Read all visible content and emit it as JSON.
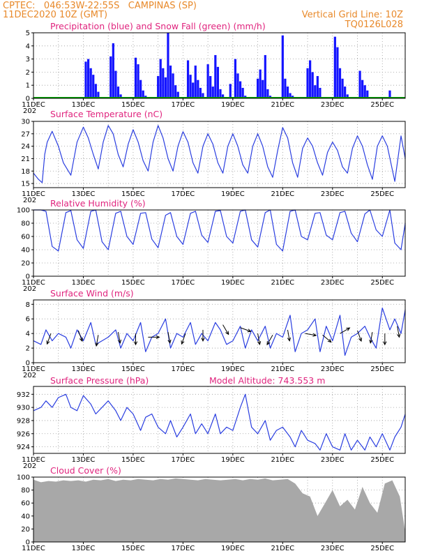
{
  "header": {
    "line1_left": "CPTEC:   046:53W-22:55S   CAMPINAS (SP)",
    "line2_left": "11DEC2020 10Z (GMT)",
    "line2_right": "Vertical Grid Line: 10Z",
    "line3_right": "TQ0126L028"
  },
  "x_axis": {
    "date_labels": [
      "11DEC",
      "13DEC",
      "15DEC",
      "17DEC",
      "19DEC",
      "21DEC",
      "23DEC",
      "25DEC"
    ],
    "year_fragment": "202"
  },
  "colors": {
    "header_text": "#e8892a",
    "title_text": "#e0247e",
    "precip": "#1414ff",
    "snow": "#00a000",
    "line": "#2a3ee0",
    "cloud": "#a8a8a8"
  },
  "chart_data": [
    {
      "id": "precipitation",
      "type": "bar",
      "title": "Precipitation (blue) and Snow Fall (green) (mm/h)",
      "ylim": [
        0,
        5
      ],
      "yticks": [
        "0",
        "1",
        "2",
        "3",
        "4",
        "5"
      ],
      "series": [
        {
          "name": "Precipitation",
          "color": "#1414ff"
        },
        {
          "name": "Snow Fall",
          "color": "#00a000"
        }
      ],
      "x_start": "2020-12-11T10:00",
      "x_end": "2020-12-26T08:00",
      "bar_days": [
        2.1,
        2.2,
        2.3,
        2.4,
        2.5,
        2.6,
        3.1,
        3.2,
        3.3,
        3.4,
        3.5,
        4.1,
        4.2,
        4.3,
        4.4,
        4.5,
        5.0,
        5.1,
        5.2,
        5.3,
        5.4,
        5.5,
        5.6,
        5.7,
        5.8,
        6.2,
        6.3,
        6.4,
        6.5,
        6.6,
        6.7,
        6.8,
        7.0,
        7.1,
        7.2,
        7.3,
        7.4,
        7.5,
        7.6,
        7.9,
        8.1,
        8.2,
        8.3,
        8.4,
        8.5,
        9.0,
        9.1,
        9.2,
        9.3,
        9.4,
        9.5,
        10.0,
        10.1,
        10.2,
        10.3,
        10.4,
        11.0,
        11.1,
        11.2,
        11.3,
        11.4,
        11.5,
        12.1,
        12.2,
        12.3,
        12.4,
        12.5,
        12.6,
        13.1,
        13.2,
        13.3,
        13.4,
        14.3
      ],
      "values": [
        2.8,
        3.0,
        2.3,
        1.8,
        1.1,
        0.5,
        3.2,
        4.2,
        2.1,
        0.9,
        0.3,
        3.1,
        2.6,
        1.4,
        0.6,
        0.2,
        1.7,
        3.0,
        2.3,
        1.6,
        5.0,
        2.5,
        1.9,
        1.0,
        0.5,
        2.9,
        1.8,
        1.2,
        2.5,
        1.4,
        0.8,
        0.4,
        2.6,
        1.7,
        0.9,
        3.3,
        2.4,
        0.7,
        0.3,
        1.1,
        3.0,
        1.9,
        1.3,
        0.8,
        0.2,
        1.5,
        2.2,
        1.4,
        3.3,
        0.7,
        0.2,
        4.8,
        1.5,
        0.9,
        0.4,
        0.2,
        2.3,
        2.9,
        2.0,
        1.0,
        1.7,
        0.8,
        4.7,
        3.9,
        2.3,
        1.5,
        0.9,
        0.3,
        2.1,
        1.4,
        1.0,
        0.6,
        0.6
      ]
    },
    {
      "id": "temperature",
      "type": "line",
      "title": "Surface Temperature (nC)",
      "ylim": [
        14,
        30
      ],
      "yticks": [
        "15",
        "18",
        "21",
        "24",
        "27",
        "30"
      ],
      "series": [
        {
          "name": "Surface Temperature",
          "color": "#2a3ee0"
        }
      ],
      "x_start": "2020-12-11T10:00",
      "x_end": "2020-12-26T08:00",
      "x_days": [
        0.0,
        0.2,
        0.35,
        0.45,
        0.55,
        0.75,
        1.0,
        1.2,
        1.5,
        1.75,
        2.0,
        2.2,
        2.4,
        2.6,
        2.8,
        3.0,
        3.2,
        3.4,
        3.6,
        3.8,
        4.0,
        4.2,
        4.4,
        4.6,
        4.8,
        5.0,
        5.2,
        5.4,
        5.6,
        5.8,
        6.0,
        6.2,
        6.4,
        6.6,
        6.8,
        7.0,
        7.2,
        7.4,
        7.6,
        7.8,
        8.0,
        8.2,
        8.4,
        8.6,
        8.8,
        9.0,
        9.2,
        9.4,
        9.6,
        9.8,
        10.0,
        10.2,
        10.4,
        10.6,
        10.8,
        11.0,
        11.2,
        11.4,
        11.6,
        11.8,
        12.0,
        12.2,
        12.4,
        12.6,
        12.8,
        13.0,
        13.2,
        13.4,
        13.6,
        13.8,
        14.0,
        14.2,
        14.5,
        14.75,
        14.92
      ],
      "values": [
        17.5,
        16.0,
        15.2,
        22.0,
        25.0,
        27.6,
        24.0,
        20.0,
        17.0,
        25.0,
        28.6,
        26.0,
        22.0,
        18.5,
        25.0,
        29.0,
        27.0,
        22.0,
        19.0,
        24.5,
        28.0,
        25.0,
        20.5,
        18.0,
        25.0,
        29.0,
        26.0,
        21.0,
        18.0,
        24.0,
        27.5,
        25.0,
        20.0,
        17.5,
        24.0,
        27.0,
        24.5,
        20.0,
        17.5,
        24.0,
        27.0,
        24.0,
        19.5,
        17.5,
        24.0,
        27.0,
        24.0,
        19.0,
        16.5,
        23.0,
        28.5,
        26.0,
        20.0,
        16.5,
        23.5,
        26.0,
        24.0,
        20.0,
        17.0,
        22.5,
        25.0,
        23.0,
        19.0,
        17.5,
        23.5,
        26.5,
        24.0,
        19.5,
        16.0,
        24.0,
        26.5,
        24.0,
        15.5,
        26.5,
        21.0
      ]
    },
    {
      "id": "humidity",
      "type": "line",
      "title": "Relative Humidity (%)",
      "ylim": [
        0,
        100
      ],
      "yticks": [
        "0",
        "20",
        "40",
        "60",
        "80",
        "100"
      ],
      "series": [
        {
          "name": "Relative Humidity",
          "color": "#2a3ee0"
        }
      ],
      "x_start": "2020-12-11T10:00",
      "x_end": "2020-12-26T08:00",
      "x_days": [
        0.0,
        0.3,
        0.5,
        0.75,
        1.0,
        1.3,
        1.5,
        1.75,
        2.0,
        2.3,
        2.5,
        2.75,
        3.0,
        3.3,
        3.5,
        3.75,
        4.0,
        4.3,
        4.5,
        4.75,
        5.0,
        5.3,
        5.5,
        5.75,
        6.0,
        6.3,
        6.5,
        6.75,
        7.0,
        7.3,
        7.5,
        7.75,
        8.0,
        8.3,
        8.5,
        8.75,
        9.0,
        9.3,
        9.5,
        9.75,
        10.0,
        10.3,
        10.5,
        10.75,
        11.0,
        11.3,
        11.5,
        11.75,
        12.0,
        12.3,
        12.5,
        12.75,
        13.0,
        13.3,
        13.5,
        13.75,
        14.0,
        14.3,
        14.5,
        14.75,
        14.92
      ],
      "values": [
        100,
        100,
        98,
        45,
        38,
        96,
        99,
        55,
        42,
        98,
        100,
        52,
        40,
        95,
        98,
        60,
        48,
        95,
        96,
        56,
        43,
        92,
        96,
        60,
        48,
        95,
        98,
        62,
        51,
        98,
        99,
        60,
        50,
        98,
        100,
        55,
        44,
        96,
        100,
        48,
        38,
        98,
        100,
        60,
        55,
        95,
        96,
        62,
        55,
        96,
        98,
        65,
        52,
        94,
        100,
        70,
        60,
        100,
        50,
        40,
        80
      ]
    },
    {
      "id": "wind",
      "type": "line",
      "title": "Surface Wind (m/s)",
      "ylim": [
        0,
        8.6
      ],
      "yticks": [
        "0",
        "2",
        "4",
        "6",
        "8"
      ],
      "series": [
        {
          "name": "Surface Wind",
          "color": "#2a3ee0"
        }
      ],
      "x_start": "2020-12-11T10:00",
      "x_end": "2020-12-26T08:00",
      "x_days": [
        0.0,
        0.3,
        0.5,
        0.75,
        1.0,
        1.3,
        1.5,
        1.75,
        2.0,
        2.3,
        2.5,
        2.75,
        3.0,
        3.3,
        3.5,
        3.75,
        4.0,
        4.3,
        4.5,
        4.75,
        5.0,
        5.3,
        5.5,
        5.75,
        6.0,
        6.3,
        6.5,
        6.75,
        7.0,
        7.3,
        7.5,
        7.75,
        8.0,
        8.3,
        8.5,
        8.75,
        9.0,
        9.3,
        9.5,
        9.75,
        10.0,
        10.3,
        10.5,
        10.75,
        11.0,
        11.3,
        11.5,
        11.75,
        12.0,
        12.3,
        12.5,
        12.75,
        13.0,
        13.3,
        13.5,
        13.75,
        14.0,
        14.3,
        14.5,
        14.75,
        14.92
      ],
      "values": [
        3.0,
        2.5,
        4.5,
        3.0,
        4.0,
        3.5,
        2.0,
        4.5,
        3.0,
        5.5,
        2.5,
        3.0,
        3.5,
        4.5,
        2.0,
        4.0,
        3.0,
        5.5,
        1.5,
        3.5,
        4.0,
        6.0,
        2.0,
        4.0,
        3.5,
        5.5,
        2.5,
        4.0,
        3.0,
        5.5,
        4.5,
        2.5,
        3.0,
        5.0,
        2.0,
        4.5,
        3.0,
        5.0,
        2.0,
        4.0,
        3.5,
        6.5,
        1.5,
        4.0,
        4.5,
        6.0,
        1.5,
        5.0,
        3.0,
        6.5,
        1.0,
        3.5,
        4.0,
        5.0,
        3.5,
        2.0,
        7.5,
        4.5,
        6.0,
        4.0,
        7.3
      ],
      "wind_arrows": {
        "days": [
          0.7,
          1.8,
          2.6,
          3.4,
          4.1,
          4.6,
          5.4,
          6.1,
          6.8,
          7.6,
          8.3,
          9.0,
          9.6,
          10.2,
          10.9,
          11.6,
          12.3,
          13.0,
          13.6,
          14.1,
          14.6
        ],
        "speeds": [
          4.0,
          4.4,
          3.8,
          4.2,
          4.0,
          3.5,
          4.2,
          4.0,
          4.5,
          5.2,
          4.8,
          4.0,
          3.8,
          4.5,
          4.0,
          3.8,
          4.0,
          4.4,
          4.2,
          4.0,
          5.0
        ],
        "dirs_deg": [
          200,
          160,
          190,
          170,
          180,
          90,
          170,
          200,
          180,
          150,
          110,
          170,
          210,
          170,
          100,
          130,
          60,
          160,
          190,
          180,
          170
        ]
      }
    },
    {
      "id": "pressure",
      "type": "line",
      "title": "Surface Pressure (hPa)",
      "annotation": "Model Altitude: 743.553 m",
      "ylim": [
        923,
        933.2
      ],
      "yticks": [
        "924",
        "926",
        "928",
        "930",
        "932"
      ],
      "series": [
        {
          "name": "Surface Pressure",
          "color": "#2a3ee0"
        }
      ],
      "x_start": "2020-12-11T10:00",
      "x_end": "2020-12-26T08:00",
      "x_days": [
        0.0,
        0.3,
        0.5,
        0.75,
        1.0,
        1.3,
        1.5,
        1.75,
        2.0,
        2.3,
        2.5,
        2.75,
        3.0,
        3.3,
        3.5,
        3.75,
        4.0,
        4.3,
        4.5,
        4.75,
        5.0,
        5.3,
        5.5,
        5.75,
        6.0,
        6.3,
        6.5,
        6.75,
        7.0,
        7.3,
        7.5,
        7.75,
        8.0,
        8.3,
        8.5,
        8.75,
        9.0,
        9.3,
        9.5,
        9.75,
        10.0,
        10.3,
        10.5,
        10.75,
        11.0,
        11.3,
        11.5,
        11.75,
        12.0,
        12.3,
        12.5,
        12.75,
        13.0,
        13.3,
        13.5,
        13.75,
        14.0,
        14.3,
        14.5,
        14.75,
        14.92
      ],
      "values": [
        929.5,
        930.0,
        931.0,
        930.0,
        931.5,
        932.0,
        930.0,
        929.5,
        931.8,
        930.5,
        929.0,
        930.0,
        931.0,
        929.5,
        928.0,
        930.0,
        929.0,
        926.5,
        928.5,
        929.0,
        927.0,
        926.0,
        928.0,
        925.5,
        927.0,
        929.0,
        926.0,
        927.5,
        926.0,
        929.0,
        926.0,
        927.0,
        926.5,
        930.0,
        932.0,
        927.0,
        926.0,
        928.0,
        925.0,
        926.5,
        927.0,
        925.5,
        924.0,
        926.5,
        925.0,
        924.5,
        923.5,
        926.0,
        924.0,
        923.5,
        926.0,
        923.5,
        925.0,
        923.5,
        925.5,
        924.0,
        926.0,
        923.5,
        925.5,
        927.0,
        929.0
      ]
    },
    {
      "id": "cloud",
      "type": "bar",
      "title": "Cloud Cover (%)",
      "ylim": [
        0,
        100
      ],
      "yticks": [
        "0",
        "20",
        "40",
        "60",
        "80",
        "100"
      ],
      "series": [
        {
          "name": "Cloud Cover",
          "color": "#a8a8a8"
        }
      ],
      "x_start": "2020-12-11T10:00",
      "x_end": "2020-12-26T08:00",
      "x_days": [
        0.0,
        0.3,
        0.6,
        0.9,
        1.2,
        1.5,
        1.8,
        2.1,
        2.4,
        2.7,
        3.0,
        3.3,
        3.6,
        3.9,
        4.2,
        4.5,
        4.8,
        5.1,
        5.4,
        5.7,
        6.0,
        6.3,
        6.6,
        6.9,
        7.2,
        7.5,
        7.8,
        8.1,
        8.4,
        8.7,
        9.0,
        9.3,
        9.6,
        9.9,
        10.2,
        10.5,
        10.8,
        11.1,
        11.4,
        11.7,
        12.0,
        12.3,
        12.6,
        12.9,
        13.2,
        13.5,
        13.8,
        14.1,
        14.4,
        14.7,
        14.92
      ],
      "values": [
        96,
        92,
        94,
        93,
        95,
        94,
        95,
        93,
        96,
        95,
        97,
        94,
        96,
        95,
        97,
        96,
        95,
        97,
        96,
        98,
        97,
        96,
        95,
        97,
        96,
        95,
        96,
        97,
        95,
        97,
        96,
        98,
        95,
        96,
        97,
        90,
        75,
        70,
        40,
        60,
        80,
        55,
        65,
        50,
        85,
        60,
        45,
        90,
        95,
        70,
        15
      ]
    }
  ]
}
